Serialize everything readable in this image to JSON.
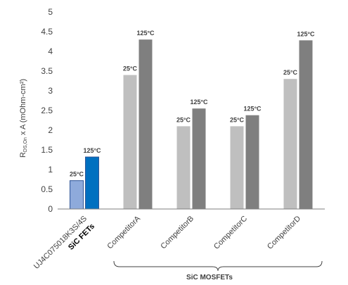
{
  "chart_data": {
    "type": "bar",
    "ylabel": "R",
    "ylabel_subscript": "DS,On",
    "ylabel_suffix": " x A (mOhm-cm²)",
    "ylim": [
      0,
      5
    ],
    "yticks": [
      "0",
      "0.5",
      "1",
      "1.5",
      "2",
      "2.5",
      "3",
      "3.5",
      "4",
      "4.5",
      "5"
    ],
    "grid": false,
    "bar_labels": [
      "25°C",
      "125°C"
    ],
    "categories": [
      {
        "name": "UJ4C075018K3S/4S",
        "sub": "SiC FETs",
        "values": [
          0.72,
          1.32
        ],
        "colors": [
          "#8eaadb",
          "#0070c0"
        ],
        "border": "#2f5597"
      },
      {
        "name": "CompetitorA",
        "values": [
          3.4,
          4.3
        ],
        "colors": [
          "#bfbfbf",
          "#7f7f7f"
        ]
      },
      {
        "name": "CompetitorB",
        "values": [
          2.1,
          2.55
        ],
        "colors": [
          "#bfbfbf",
          "#7f7f7f"
        ]
      },
      {
        "name": "CompetitorC",
        "values": [
          2.1,
          2.38
        ],
        "colors": [
          "#bfbfbf",
          "#7f7f7f"
        ]
      },
      {
        "name": "CompetitorD",
        "values": [
          3.3,
          4.28
        ],
        "colors": [
          "#bfbfbf",
          "#7f7f7f"
        ]
      }
    ],
    "group_label": "SiC MOSFETs",
    "group_members": [
      1,
      2,
      3,
      4
    ],
    "colors": {
      "axis": "#7f7f7f",
      "text": "#404040"
    }
  }
}
